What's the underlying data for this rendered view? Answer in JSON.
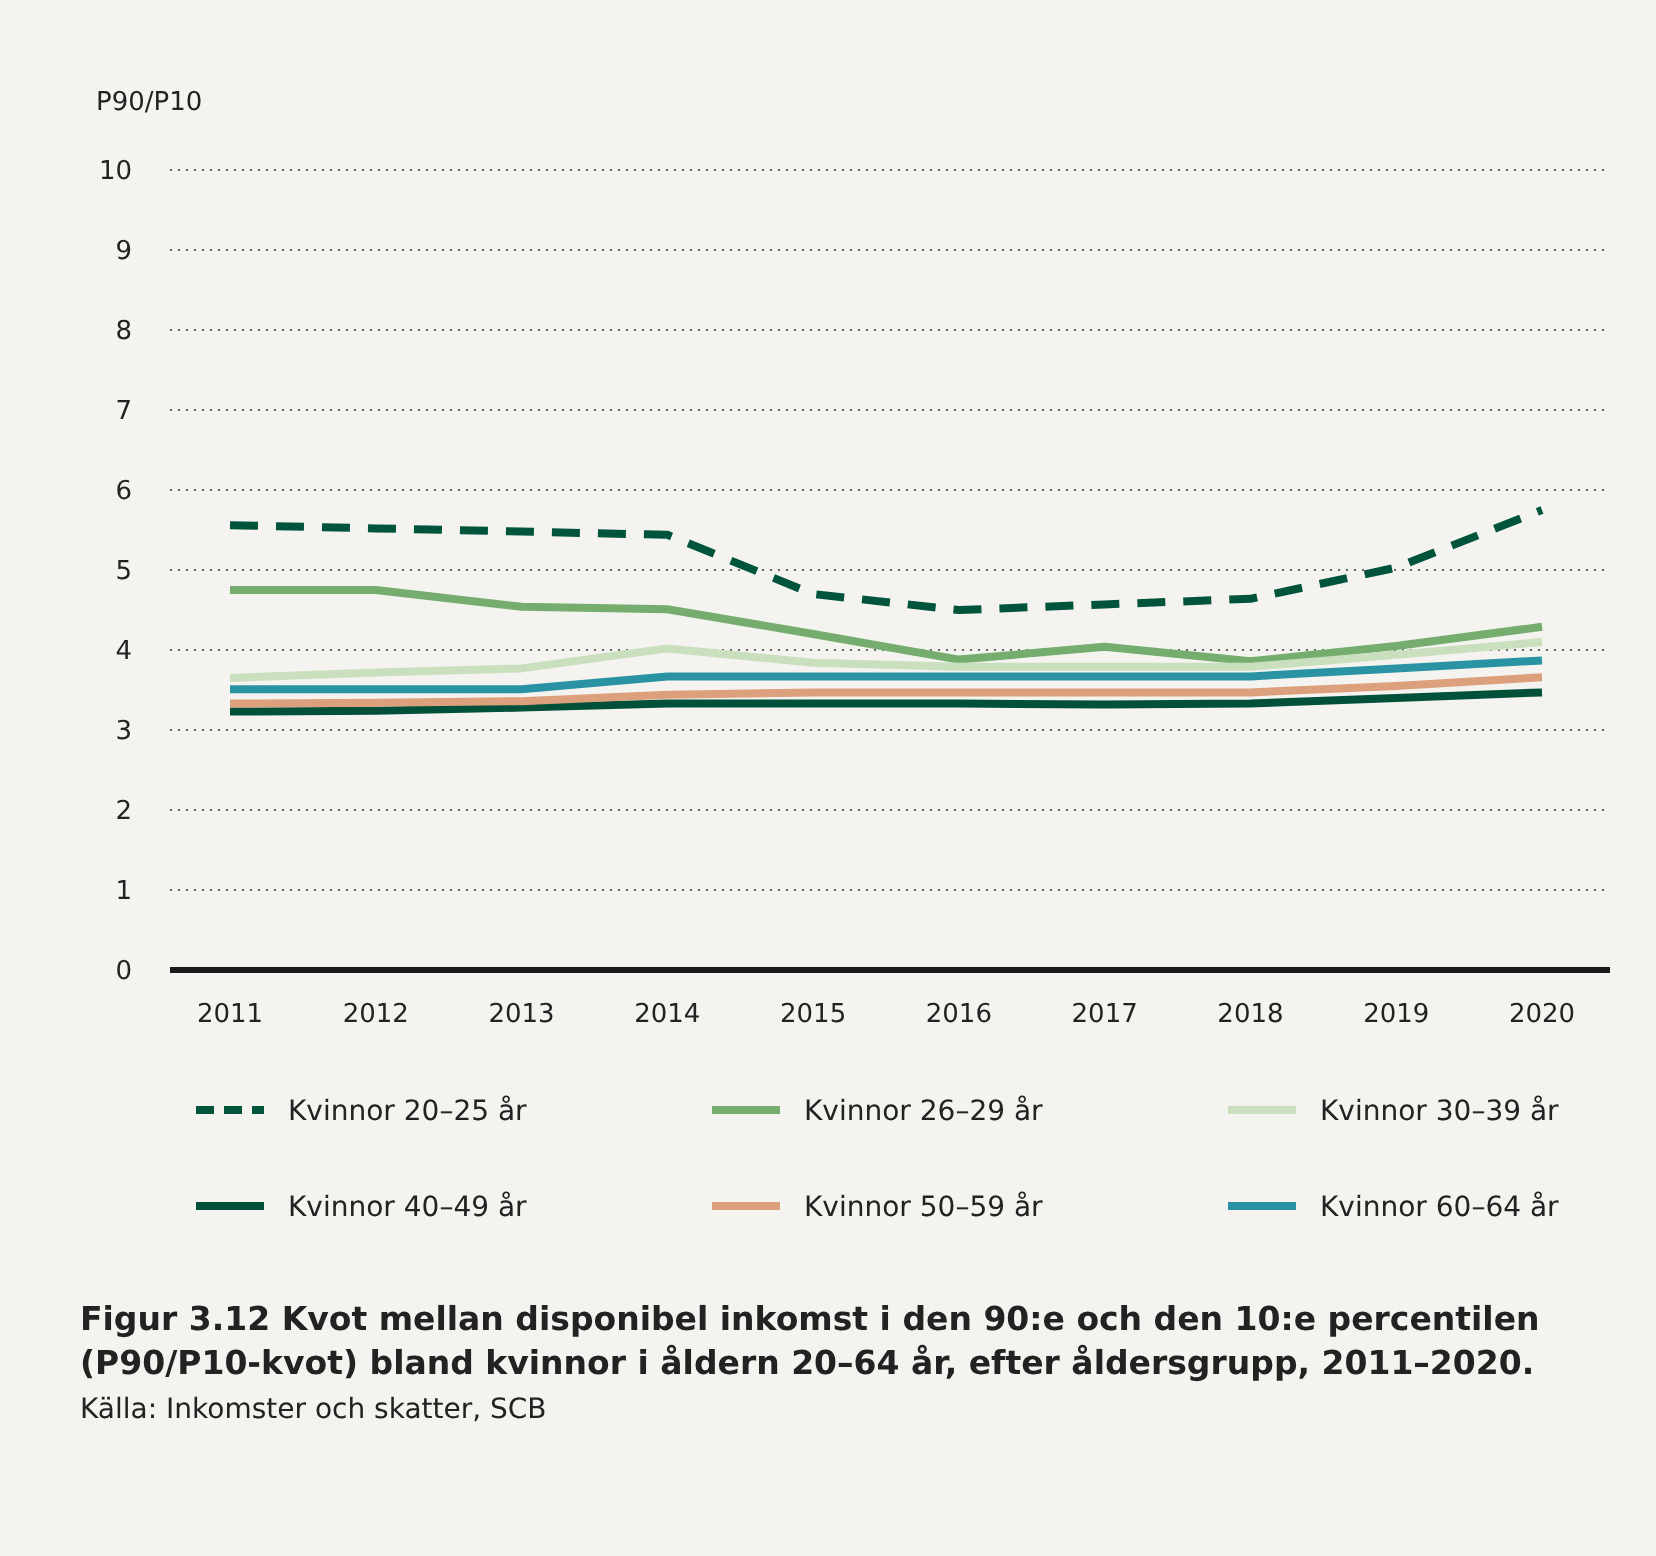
{
  "chart_data": {
    "type": "line",
    "title": "Figur 3.12 Kvot mellan disponibel inkomst i den 90:e och den 10:e percentilen (P90/P10-kvot) bland kvinnor i åldern 20–64 år, efter åldersgrupp, 2011–2020.",
    "ylabel": "P90/P10",
    "annotations": [
      "Källa: Inkomster och skatter, SCB"
    ],
    "categories": [
      "2011",
      "2012",
      "2013",
      "2014",
      "2015",
      "2016",
      "2017",
      "2018",
      "2019",
      "2020"
    ],
    "ylim": [
      0,
      10
    ],
    "yticks": [
      0,
      1,
      2,
      3,
      4,
      5,
      6,
      7,
      8,
      9,
      10
    ],
    "grid": "y",
    "legend": "bottom",
    "marker": "none",
    "series": [
      {
        "name": "Kvinnor 20–25 år",
        "color": "#00543c",
        "line_style": "dashed",
        "values": [
          5.56,
          5.52,
          5.48,
          5.44,
          4.7,
          4.5,
          4.57,
          4.64,
          5.03,
          5.75
        ]
      },
      {
        "name": "Kvinnor 26–29 år",
        "color": "#74ad6e",
        "values": [
          4.75,
          4.75,
          4.54,
          4.51,
          4.2,
          3.88,
          4.04,
          3.86,
          4.05,
          4.29
        ]
      },
      {
        "name": "Kvinnor 30–39 år",
        "color": "#c9dfbe",
        "values": [
          3.65,
          3.72,
          3.77,
          4.02,
          3.84,
          3.79,
          3.79,
          3.79,
          3.94,
          4.1
        ]
      },
      {
        "name": "Kvinnor 40–49 år",
        "color": "#00503a",
        "values": [
          3.23,
          3.24,
          3.28,
          3.33,
          3.33,
          3.33,
          3.32,
          3.33,
          3.4,
          3.47
        ]
      },
      {
        "name": "Kvinnor 50–59 år",
        "color": "#dda07c",
        "values": [
          3.33,
          3.34,
          3.36,
          3.44,
          3.47,
          3.47,
          3.47,
          3.47,
          3.55,
          3.66
        ]
      },
      {
        "name": "Kvinnor 60–64 år",
        "color": "#2a93a3",
        "values": [
          3.51,
          3.51,
          3.51,
          3.67,
          3.67,
          3.67,
          3.67,
          3.67,
          3.77,
          3.87
        ]
      }
    ]
  }
}
